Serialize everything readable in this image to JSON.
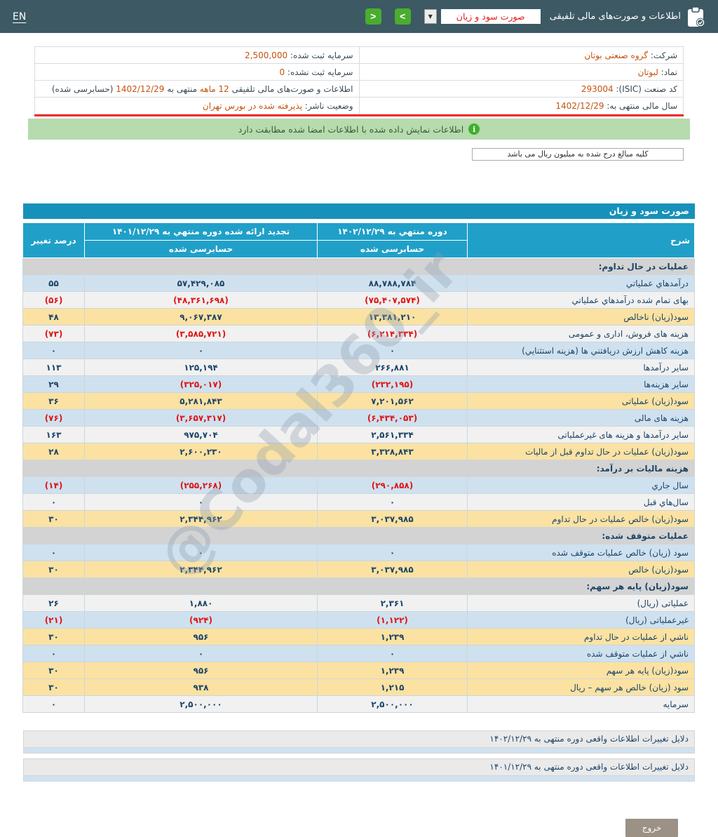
{
  "colors": {
    "topbar_bg": "#3c5964",
    "green_btn": "#4aad2f",
    "title_bar": "#1791b9",
    "header_bg": "#20a0c8",
    "row_blue": "#cfe1ef",
    "row_white": "#f1f1f1",
    "row_yellow": "#fbe2a2",
    "row_section": "#d3d3d3",
    "navy": "#1d4568",
    "neg": "#e11414",
    "info_value": "#c4530f",
    "notice_bg": "#b5dbae",
    "icon_green": "#3faf2d",
    "red_line": "#f32b2b",
    "exit_bg": "#9b9185"
  },
  "topbar": {
    "en_label": "EN",
    "title": "اطلاعات و صورت‌های مالی تلفیقی",
    "dropdown_value": "صورت سود و زیان",
    "dropdown_arrow": "▼",
    "next_glyph": ">",
    "prev_glyph": "<"
  },
  "info": {
    "rows": [
      {
        "right": [
          {
            "t": "شرکت: ",
            "c": "l"
          },
          {
            "t": "گروه صنعتی بوتان",
            "c": "v"
          }
        ],
        "left": [
          {
            "t": "سرمایه ثبت شده: ",
            "c": "l"
          },
          {
            "t": "2,500,000",
            "c": "v"
          }
        ]
      },
      {
        "right": [
          {
            "t": "نماد: ",
            "c": "l"
          },
          {
            "t": "لبوتان",
            "c": "v"
          }
        ],
        "left": [
          {
            "t": "سرمایه ثبت نشده: ",
            "c": "l"
          },
          {
            "t": "0",
            "c": "v"
          }
        ]
      },
      {
        "right": [
          {
            "t": "کد صنعت (ISIC): ",
            "c": "l"
          },
          {
            "t": "293004",
            "c": "v"
          }
        ],
        "left": [
          {
            "t": "اطلاعات و صورت‌های مالی تلفیقی ",
            "c": "l"
          },
          {
            "t": "12 ماهه",
            "c": "v"
          },
          {
            "t": " منتهی به ",
            "c": "l"
          },
          {
            "t": "1402/12/29",
            "c": "v"
          },
          {
            "t": " (حسابرسی شده)",
            "c": "l"
          }
        ]
      },
      {
        "right": [
          {
            "t": "سال مالی منتهی به: ",
            "c": "l"
          },
          {
            "t": "1402/12/29",
            "c": "v"
          }
        ],
        "left": [
          {
            "t": "وضعیت ناشر: ",
            "c": "l"
          },
          {
            "t": "پذیرفته شده در بورس تهران",
            "c": "v"
          }
        ]
      }
    ],
    "signed_notice": "اطلاعات نمایش داده شده با اطلاعات امضا شده مطابقت دارد",
    "info_icon_glyph": "i",
    "currency_note": "کلیه مبالغ درج شده به میلیون ریال می باشد"
  },
  "table": {
    "title": "صورت سود و زيان",
    "col_desc": "شرح",
    "col_period_current": "دوره منتهي به ۱۴۰۲/۱۲/۲۹",
    "col_period_prior": "تجدید ارائه شده دوره منتهي به ۱۴۰۱/۱۲/۲۹",
    "col_audited_current": "حسابرسی شده",
    "col_audited_prior": "حسابرسی شده",
    "col_change": "درصد تغییر",
    "rows": [
      {
        "type": "section",
        "label": "عملیات در حال تداوم:"
      },
      {
        "type": "data",
        "bg": "blue",
        "label": "درآمدهاي عملياتي",
        "v1": "۸۸,۷۸۸,۷۸۴",
        "v2": "۵۷,۴۲۹,۰۸۵",
        "pct": "۵۵"
      },
      {
        "type": "data",
        "bg": "white",
        "label": "بهای تمام شده درآمدهاي عملياتي",
        "v1": "(۷۵,۴۰۷,۵۷۴)",
        "v2": "(۴۸,۳۶۱,۶۹۸)",
        "pct": "(۵۶)"
      },
      {
        "type": "data",
        "bg": "yellow",
        "label": "سود(زيان) ناخالص",
        "v1": "۱۳,۳۸۱,۲۱۰",
        "v2": "۹,۰۶۷,۳۸۷",
        "pct": "۴۸"
      },
      {
        "type": "data",
        "bg": "white",
        "label": "هزينه های فروش، اداری و عمومی",
        "v1": "(۶,۲۱۴,۳۳۴)",
        "v2": "(۳,۵۸۵,۷۲۱)",
        "pct": "(۷۳)"
      },
      {
        "type": "data",
        "bg": "blue",
        "label": "هزينه کاهش ارزش دريافتني ها (هزينه استثنايي)",
        "v1": "۰",
        "v2": "۰",
        "pct": "۰"
      },
      {
        "type": "data",
        "bg": "white",
        "label": "ساير درآمدها",
        "v1": "۲۶۶,۸۸۱",
        "v2": "۱۲۵,۱۹۴",
        "pct": "۱۱۳"
      },
      {
        "type": "data",
        "bg": "blue",
        "label": "ساير هزينه‌ها",
        "v1": "(۲۳۲,۱۹۵)",
        "v2": "(۳۲۵,۰۱۷)",
        "pct": "۲۹"
      },
      {
        "type": "data",
        "bg": "yellow",
        "label": "سود(زيان) عملياتی",
        "v1": "۷,۲۰۱,۵۶۲",
        "v2": "۵,۲۸۱,۸۴۳",
        "pct": "۳۶"
      },
      {
        "type": "data",
        "bg": "blue",
        "label": "هزينه های مالی",
        "v1": "(۶,۴۳۴,۰۵۳)",
        "v2": "(۳,۶۵۷,۳۱۷)",
        "pct": "(۷۶)"
      },
      {
        "type": "data",
        "bg": "white",
        "label": "ساير درآمدها و هزينه های غيرعملياتی",
        "v1": "۲,۵۶۱,۳۳۴",
        "v2": "۹۷۵,۷۰۴",
        "pct": "۱۶۳"
      },
      {
        "type": "data",
        "bg": "yellow",
        "label": "سود(زيان) عمليات در حال تداوم قبل از ماليات",
        "v1": "۳,۳۲۸,۸۴۳",
        "v2": "۲,۶۰۰,۲۳۰",
        "pct": "۲۸"
      },
      {
        "type": "section",
        "label": "هزينه ماليات بر درآمد:"
      },
      {
        "type": "data",
        "bg": "blue",
        "label": "سال جاري",
        "v1": "(۲۹۰,۸۵۸)",
        "v2": "(۲۵۵,۲۶۸)",
        "pct": "(۱۴)"
      },
      {
        "type": "data",
        "bg": "white",
        "label": "سال‌هاي قبل",
        "v1": "۰",
        "v2": "۰",
        "pct": "۰"
      },
      {
        "type": "data",
        "bg": "yellow",
        "label": "سود(زيان) خالص عمليات در حال تداوم",
        "v1": "۳,۰۳۷,۹۸۵",
        "v2": "۲,۳۴۴,۹۶۲",
        "pct": "۳۰"
      },
      {
        "type": "section",
        "label": "عمليات متوقف شده:"
      },
      {
        "type": "data",
        "bg": "blue",
        "label": "سود (زيان) خالص عمليات متوقف شده",
        "v1": "۰",
        "v2": "۰",
        "pct": "۰"
      },
      {
        "type": "data",
        "bg": "yellow",
        "label": "سود(زيان) خالص",
        "v1": "۳,۰۳۷,۹۸۵",
        "v2": "۲,۳۴۴,۹۶۲",
        "pct": "۳۰"
      },
      {
        "type": "section",
        "label": "سود(زيان) پايه هر سهم:"
      },
      {
        "type": "data",
        "bg": "white",
        "label": "عملياتی (ريال)",
        "v1": "۲,۳۶۱",
        "v2": "۱,۸۸۰",
        "pct": "۲۶"
      },
      {
        "type": "data",
        "bg": "blue",
        "label": "غيرعملياتی (ريال)",
        "v1": "(۱,۱۲۲)",
        "v2": "(۹۲۴)",
        "pct": "(۲۱)"
      },
      {
        "type": "data",
        "bg": "yellow",
        "label": "ناشي از عمليات در حال تداوم",
        "v1": "۱,۲۳۹",
        "v2": "۹۵۶",
        "pct": "۳۰"
      },
      {
        "type": "data",
        "bg": "blue",
        "label": "ناشي از عمليات متوقف شده",
        "v1": "۰",
        "v2": "۰",
        "pct": "۰"
      },
      {
        "type": "data",
        "bg": "yellow",
        "label": "سود(زيان) پايه هر سهم",
        "v1": "۱,۲۳۹",
        "v2": "۹۵۶",
        "pct": "۳۰"
      },
      {
        "type": "data",
        "bg": "yellow",
        "label": "سود (زيان) خالص هر سهم – ريال",
        "v1": "۱,۲۱۵",
        "v2": "۹۳۸",
        "pct": "۳۰"
      },
      {
        "type": "data",
        "bg": "white",
        "label": "سرمايه",
        "v1": "۲,۵۰۰,۰۰۰",
        "v2": "۲,۵۰۰,۰۰۰",
        "pct": "۰"
      }
    ]
  },
  "watermark": "@Codal360_ir",
  "footer": {
    "items": [
      {
        "label": "دلایل تغییرات اطلاعات واقعی دوره منتهی به ۱۴۰۲/۱۲/۲۹"
      },
      {
        "label": "دلایل تغییرات اطلاعات واقعی دوره منتهی به ۱۴۰۱/۱۲/۲۹"
      }
    ]
  },
  "exit_label": "خروج"
}
